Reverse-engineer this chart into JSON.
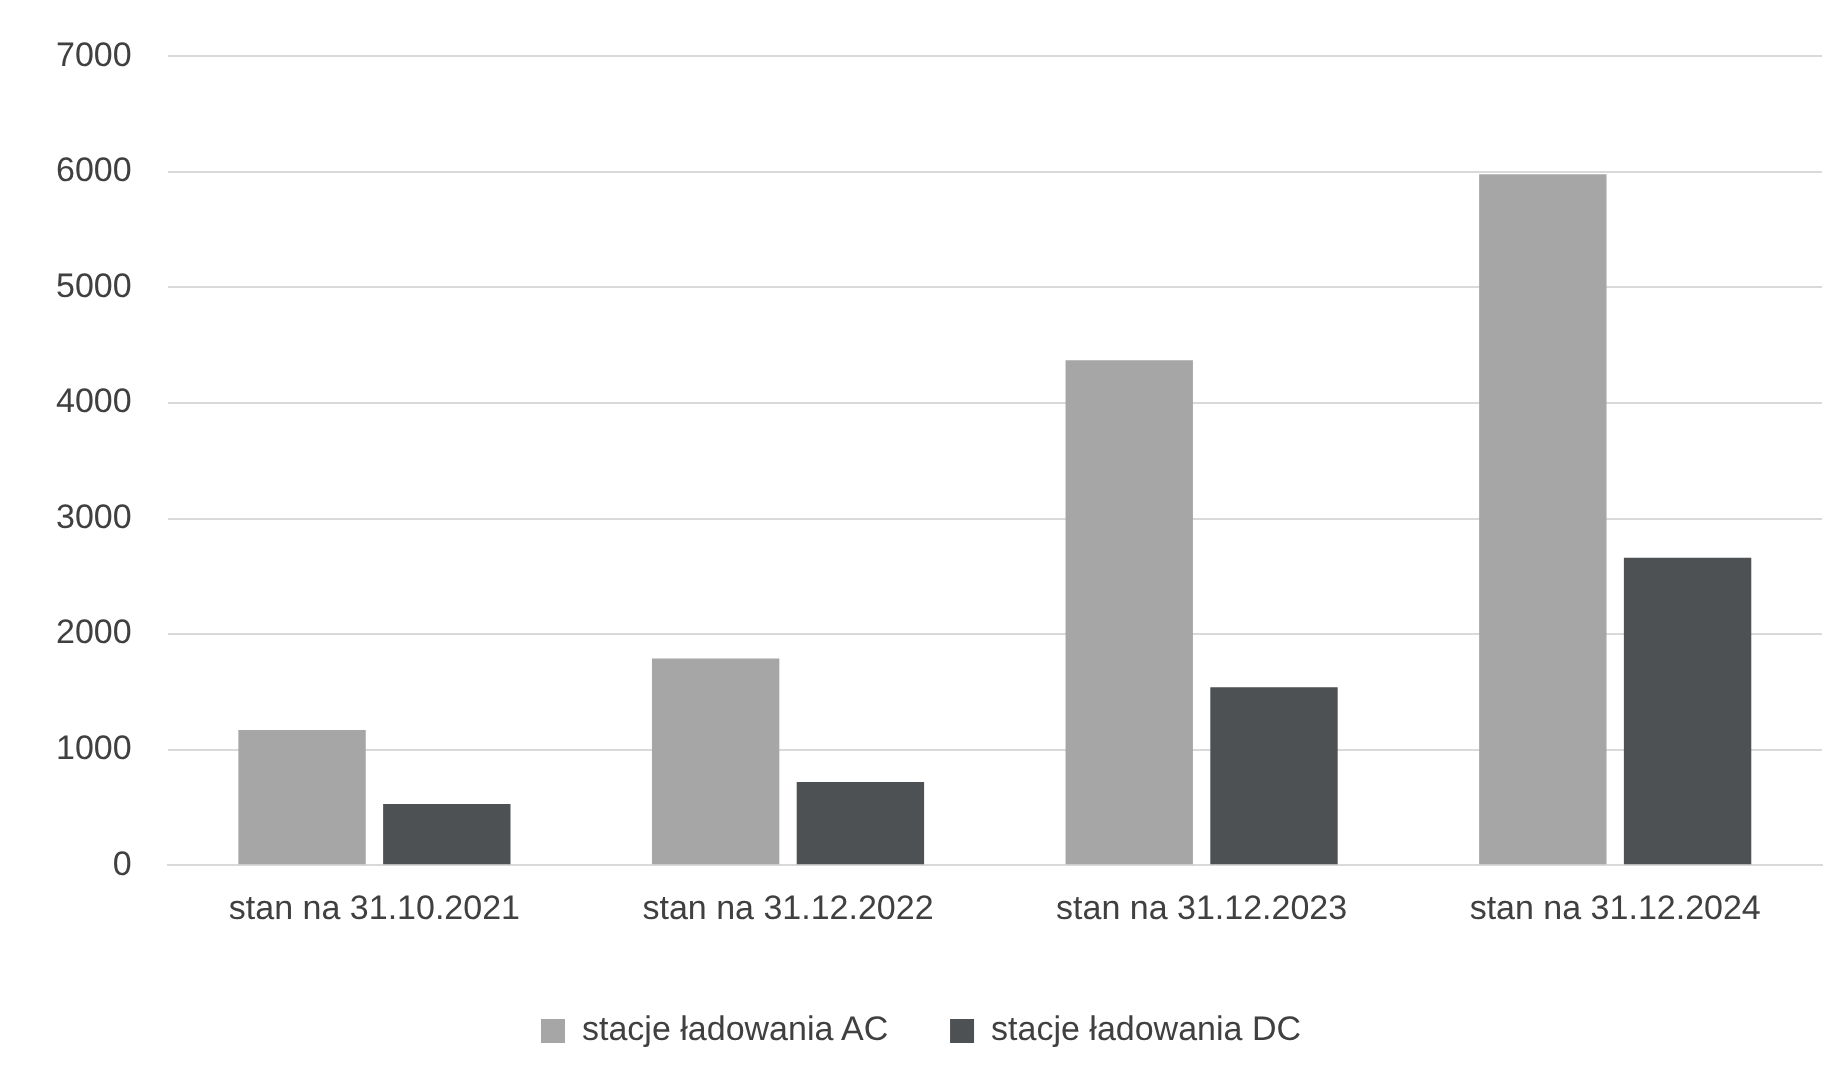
{
  "chart_data": {
    "type": "bar",
    "categories": [
      "stan na 31.10.2021",
      "stan na 31.12.2022",
      "stan na 31.12.2023",
      "stan na 31.12.2024"
    ],
    "series": [
      {
        "name": "stacje ładowania AC",
        "color": "#a6a6a6",
        "values": [
          1170,
          1790,
          4370,
          5980
        ]
      },
      {
        "name": "stacje ładowania DC",
        "color": "#4d5153",
        "values": [
          530,
          720,
          1540,
          2660
        ]
      }
    ],
    "ylim": [
      0,
      7000
    ],
    "yticks": [
      0,
      1000,
      2000,
      3000,
      4000,
      5000,
      6000,
      7000
    ],
    "grid": "y",
    "legend": "bottom"
  }
}
